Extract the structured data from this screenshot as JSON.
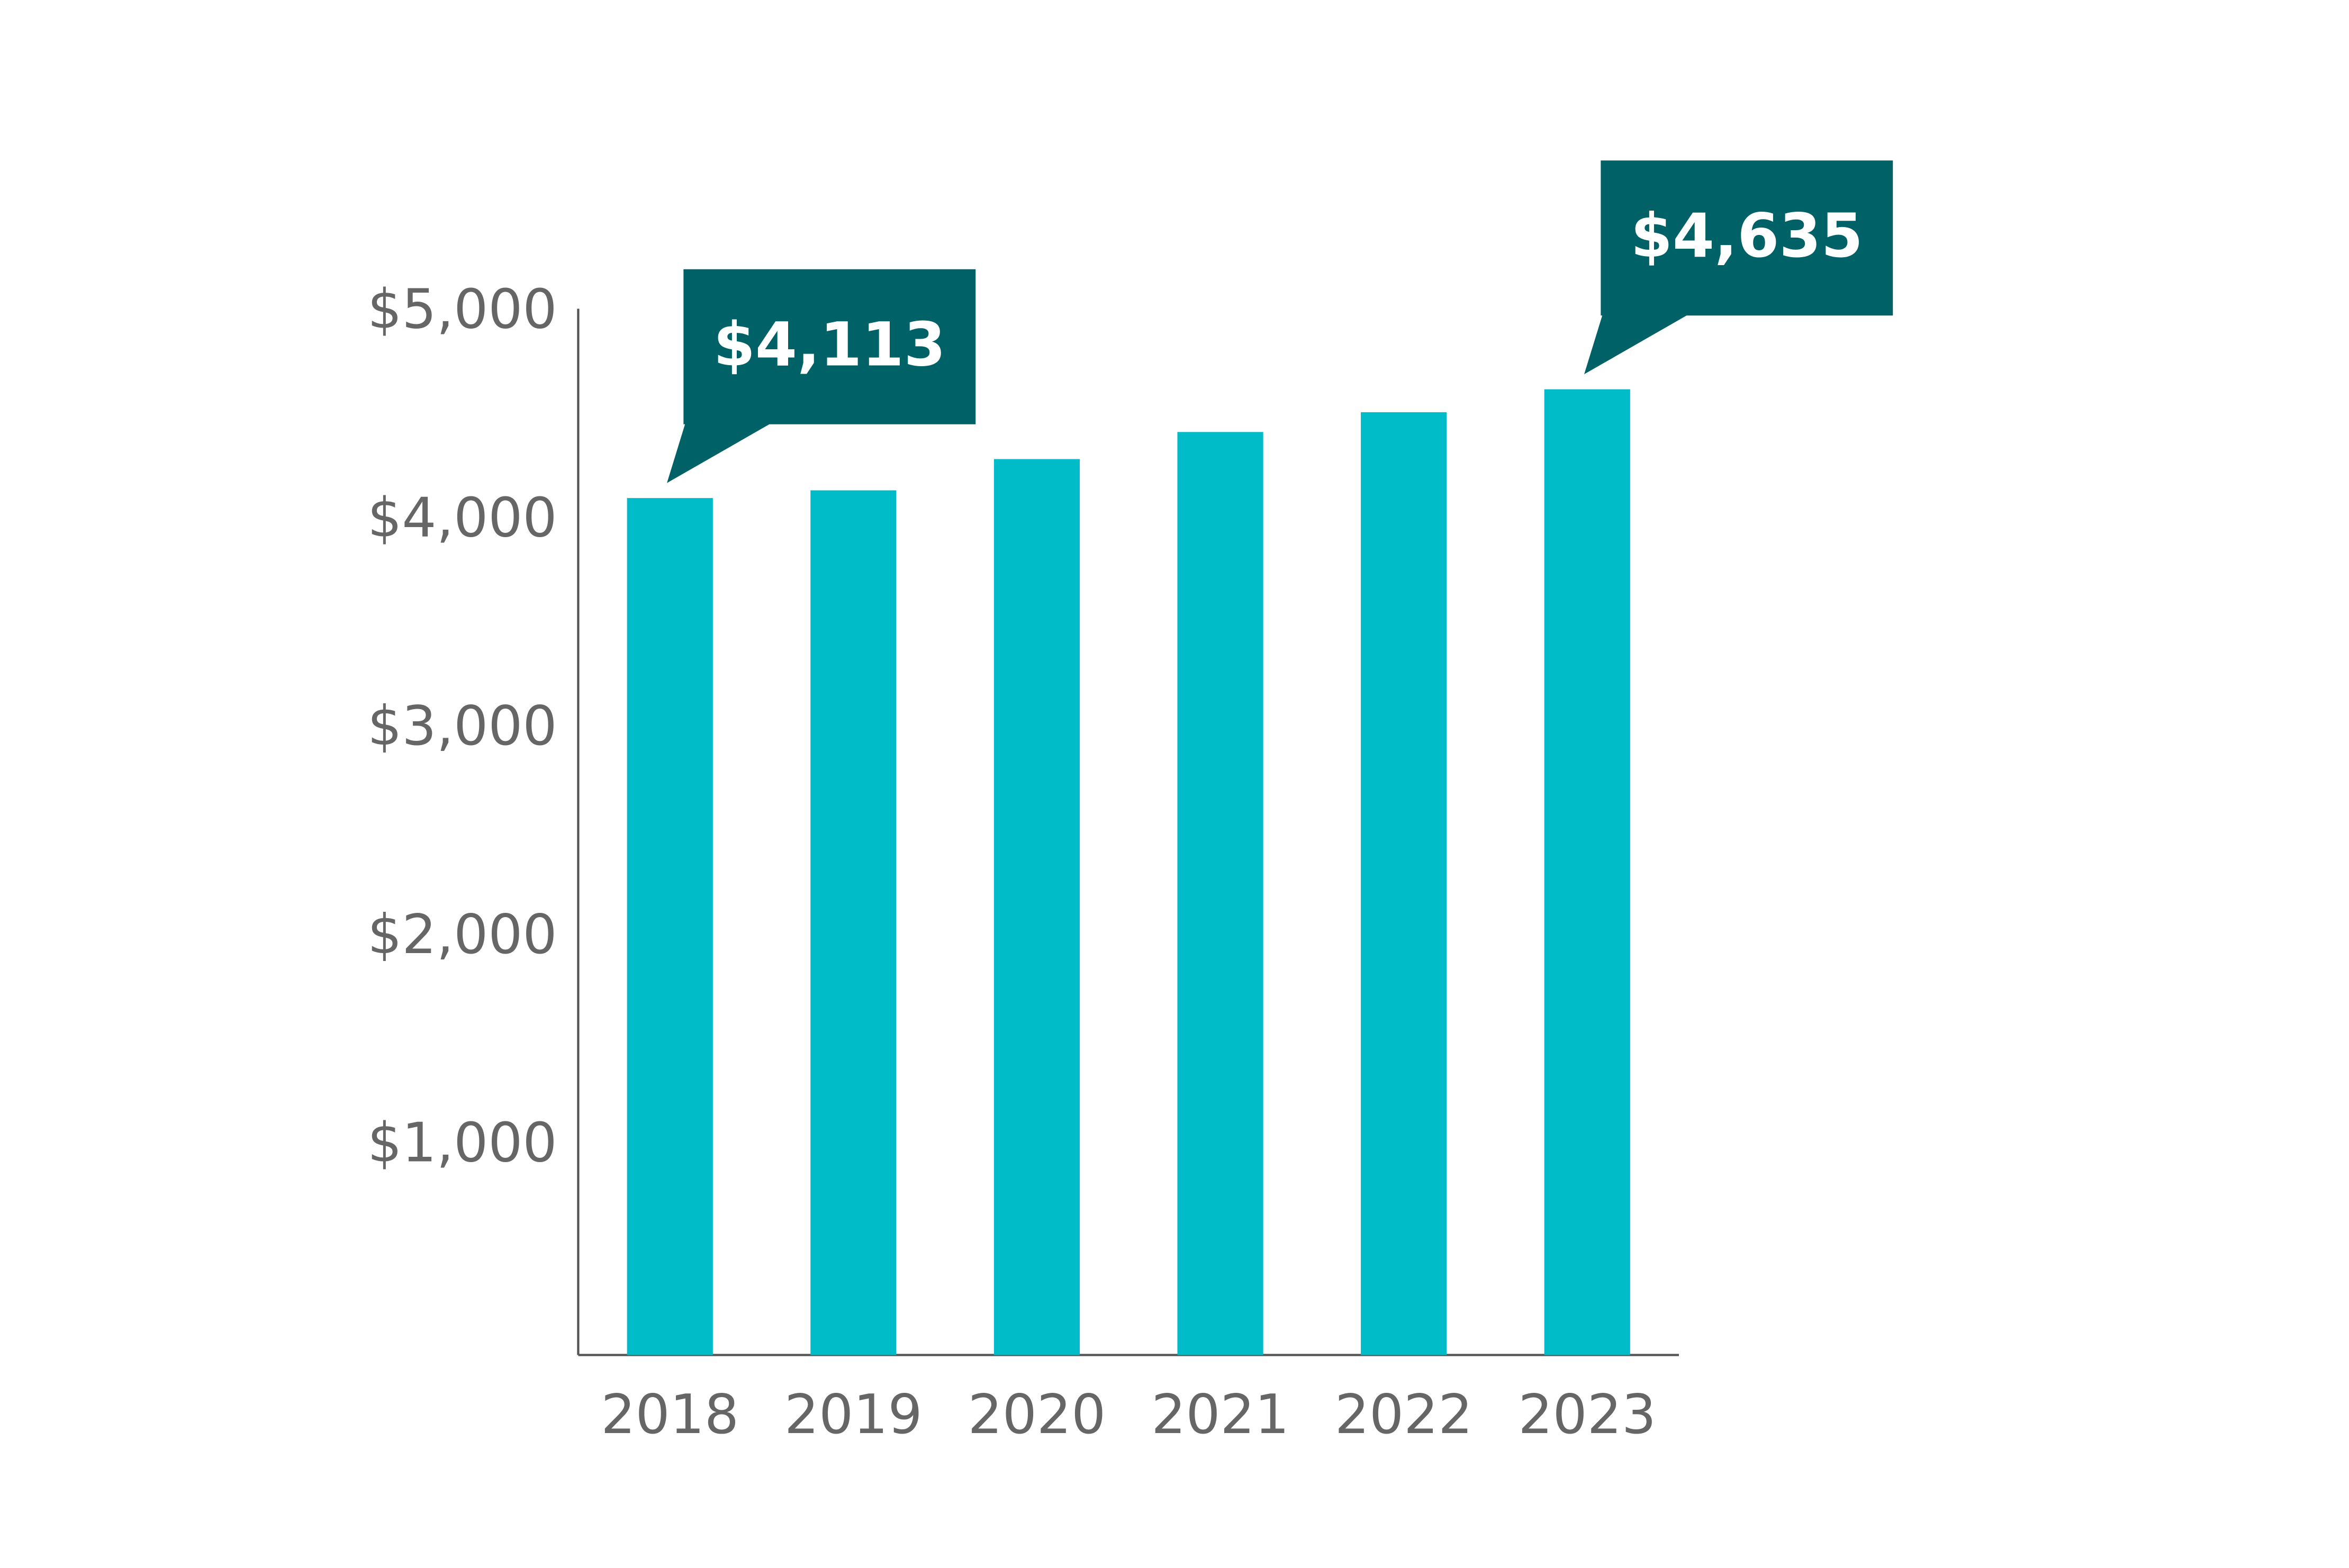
{
  "chart_data": {
    "type": "bar",
    "categories": [
      "2018",
      "2019",
      "2020",
      "2021",
      "2022",
      "2023"
    ],
    "values": [
      4113,
      4150,
      4300,
      4430,
      4525,
      4635
    ],
    "value_labels": [
      "$4,113",
      null,
      null,
      null,
      null,
      "$4,635"
    ],
    "color": "#00bcc9",
    "label_color": "#006166",
    "ylim": [
      0,
      5000
    ],
    "yticks": [
      {
        "value": 1000,
        "label": "$1,000"
      },
      {
        "value": 2000,
        "label": "$2,000"
      },
      {
        "value": 3000,
        "label": "$3,000"
      },
      {
        "value": 4000,
        "label": "$4,000"
      },
      {
        "value": 5000,
        "label": "$5,000"
      }
    ],
    "grid": false
  }
}
